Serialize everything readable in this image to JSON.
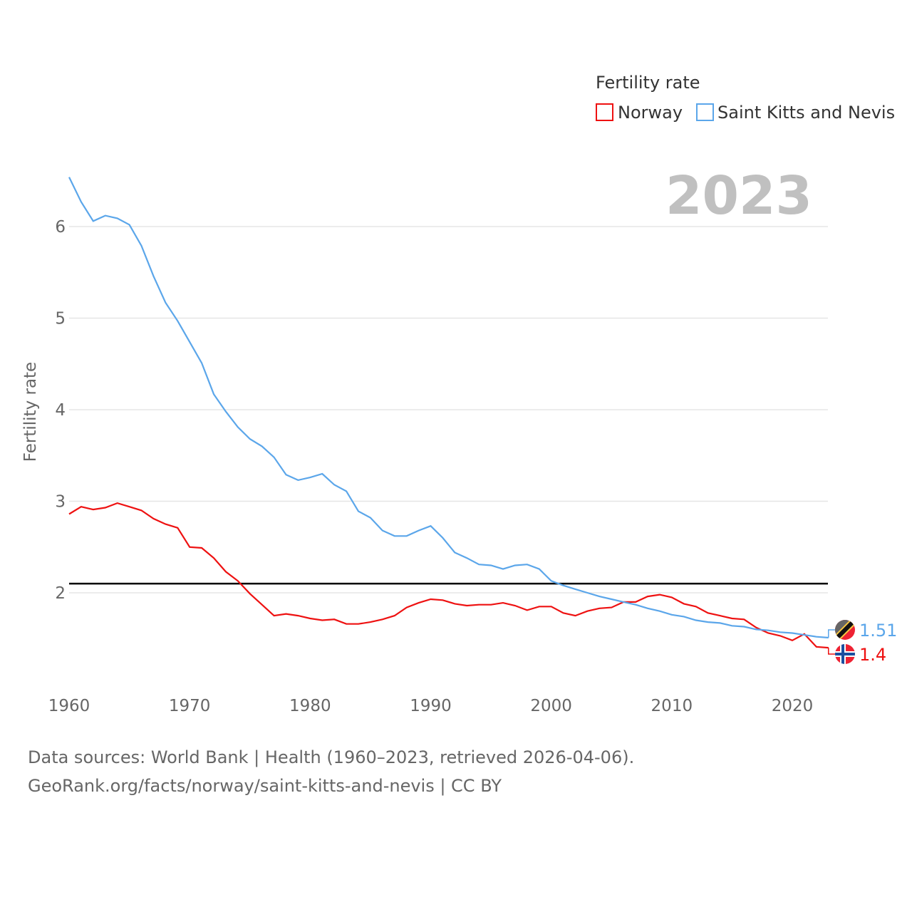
{
  "chart_data": {
    "type": "line",
    "title": "",
    "year_label": "2023",
    "xlabel": "",
    "ylabel": "Fertility rate",
    "xlim": [
      1960,
      2023
    ],
    "ylim": [
      1.0,
      6.6
    ],
    "x_ticks": [
      1960,
      1970,
      1980,
      1990,
      2000,
      2010,
      2020
    ],
    "y_ticks": [
      2,
      3,
      4,
      5,
      6
    ],
    "grid": true,
    "reference_line": 2.1,
    "legend": {
      "title": "Fertility rate",
      "placement": "top-right"
    },
    "x": [
      1960,
      1961,
      1962,
      1963,
      1964,
      1965,
      1966,
      1967,
      1968,
      1969,
      1970,
      1971,
      1972,
      1973,
      1974,
      1975,
      1976,
      1977,
      1978,
      1979,
      1980,
      1981,
      1982,
      1983,
      1984,
      1985,
      1986,
      1987,
      1988,
      1989,
      1990,
      1991,
      1992,
      1993,
      1994,
      1995,
      1996,
      1997,
      1998,
      1999,
      2000,
      2001,
      2002,
      2003,
      2004,
      2005,
      2006,
      2007,
      2008,
      2009,
      2010,
      2011,
      2012,
      2013,
      2014,
      2015,
      2016,
      2017,
      2018,
      2019,
      2020,
      2021,
      2022,
      2023
    ],
    "series": [
      {
        "name": "Norway",
        "color": "#ee1111",
        "end_label": "1.4",
        "values": [
          2.86,
          2.94,
          2.91,
          2.93,
          2.98,
          2.94,
          2.9,
          2.81,
          2.75,
          2.71,
          2.5,
          2.49,
          2.38,
          2.23,
          2.13,
          1.99,
          1.87,
          1.75,
          1.77,
          1.75,
          1.72,
          1.7,
          1.71,
          1.66,
          1.66,
          1.68,
          1.71,
          1.75,
          1.84,
          1.89,
          1.93,
          1.92,
          1.88,
          1.86,
          1.87,
          1.87,
          1.89,
          1.86,
          1.81,
          1.85,
          1.85,
          1.78,
          1.75,
          1.8,
          1.83,
          1.84,
          1.9,
          1.9,
          1.96,
          1.98,
          1.95,
          1.88,
          1.85,
          1.78,
          1.75,
          1.72,
          1.71,
          1.62,
          1.56,
          1.53,
          1.48,
          1.55,
          1.41,
          1.4
        ]
      },
      {
        "name": "Saint Kitts and Nevis",
        "color": "#5ba6ea",
        "end_label": "1.51",
        "values": [
          6.54,
          6.27,
          6.06,
          6.12,
          6.09,
          6.02,
          5.79,
          5.46,
          5.17,
          4.97,
          4.74,
          4.51,
          4.17,
          3.98,
          3.81,
          3.68,
          3.6,
          3.48,
          3.29,
          3.23,
          3.26,
          3.3,
          3.18,
          3.11,
          2.89,
          2.82,
          2.68,
          2.62,
          2.62,
          2.68,
          2.73,
          2.6,
          2.44,
          2.38,
          2.31,
          2.3,
          2.26,
          2.3,
          2.31,
          2.26,
          2.13,
          2.08,
          2.04,
          2.0,
          1.96,
          1.93,
          1.9,
          1.87,
          1.83,
          1.8,
          1.76,
          1.74,
          1.7,
          1.68,
          1.67,
          1.64,
          1.63,
          1.6,
          1.59,
          1.57,
          1.56,
          1.54,
          1.52,
          1.51
        ]
      }
    ]
  },
  "footer": {
    "line1": "Data sources: World Bank | Health (1960–2023, retrieved 2026-04-06).",
    "line2": "GeoRank.org/facts/norway/saint-kitts-and-nevis | CC BY"
  }
}
